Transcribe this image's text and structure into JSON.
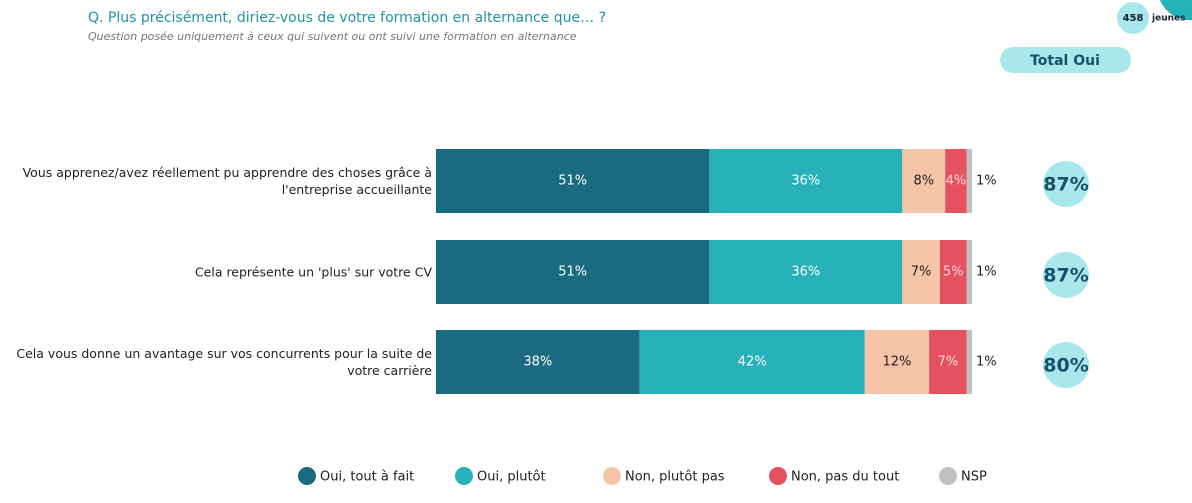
{
  "chart_data": {
    "type": "stacked-bar",
    "title": "Q. Plus précisément, diriez-vous de votre formation en alternance que… ?",
    "subtitle": "Question posée uniquement à ceux qui suivent ou ont suivi une formation en alternance",
    "sample": {
      "count": 458,
      "label": "jeunes"
    },
    "categories": [
      "Vous apprenez/avez réellement pu apprendre des choses grâce à l'entreprise accueillante",
      "Cela représente un 'plus' sur votre CV",
      "Cela vous donne un avantage sur vos concurrents pour la suite de votre carrière"
    ],
    "series": [
      {
        "name": "Oui, tout à fait",
        "color": "#1a6b80",
        "label_color": "#ffffff",
        "values": [
          51,
          51,
          38
        ],
        "value_labels": [
          "51%",
          "51%",
          "38%"
        ]
      },
      {
        "name": "Oui, plutôt",
        "color": "#27b1b9",
        "label_color": "#ffffff",
        "values": [
          36,
          36,
          42
        ],
        "value_labels": [
          "36%",
          "36%",
          "42%"
        ]
      },
      {
        "name": "Non, plutôt pas",
        "color": "#f6c4a6",
        "label_color": "#222222",
        "values": [
          8,
          7,
          12
        ],
        "value_labels": [
          "8%",
          "7%",
          "12%"
        ]
      },
      {
        "name": "Non, pas du tout",
        "color": "#e5525f",
        "label_color": "#fbd4d8",
        "values": [
          4,
          5,
          7
        ],
        "value_labels": [
          "4%",
          "5%",
          "7%"
        ]
      },
      {
        "name": "NSP",
        "color": "#c0c0c0",
        "label_color": "#222222",
        "values": [
          1,
          1,
          1
        ],
        "value_labels": [
          "1%",
          "1%",
          "1%"
        ]
      }
    ],
    "totals": {
      "title": "Total Oui",
      "values": [
        87,
        87,
        80
      ],
      "value_labels": [
        "87%",
        "87%",
        "80%"
      ]
    }
  }
}
